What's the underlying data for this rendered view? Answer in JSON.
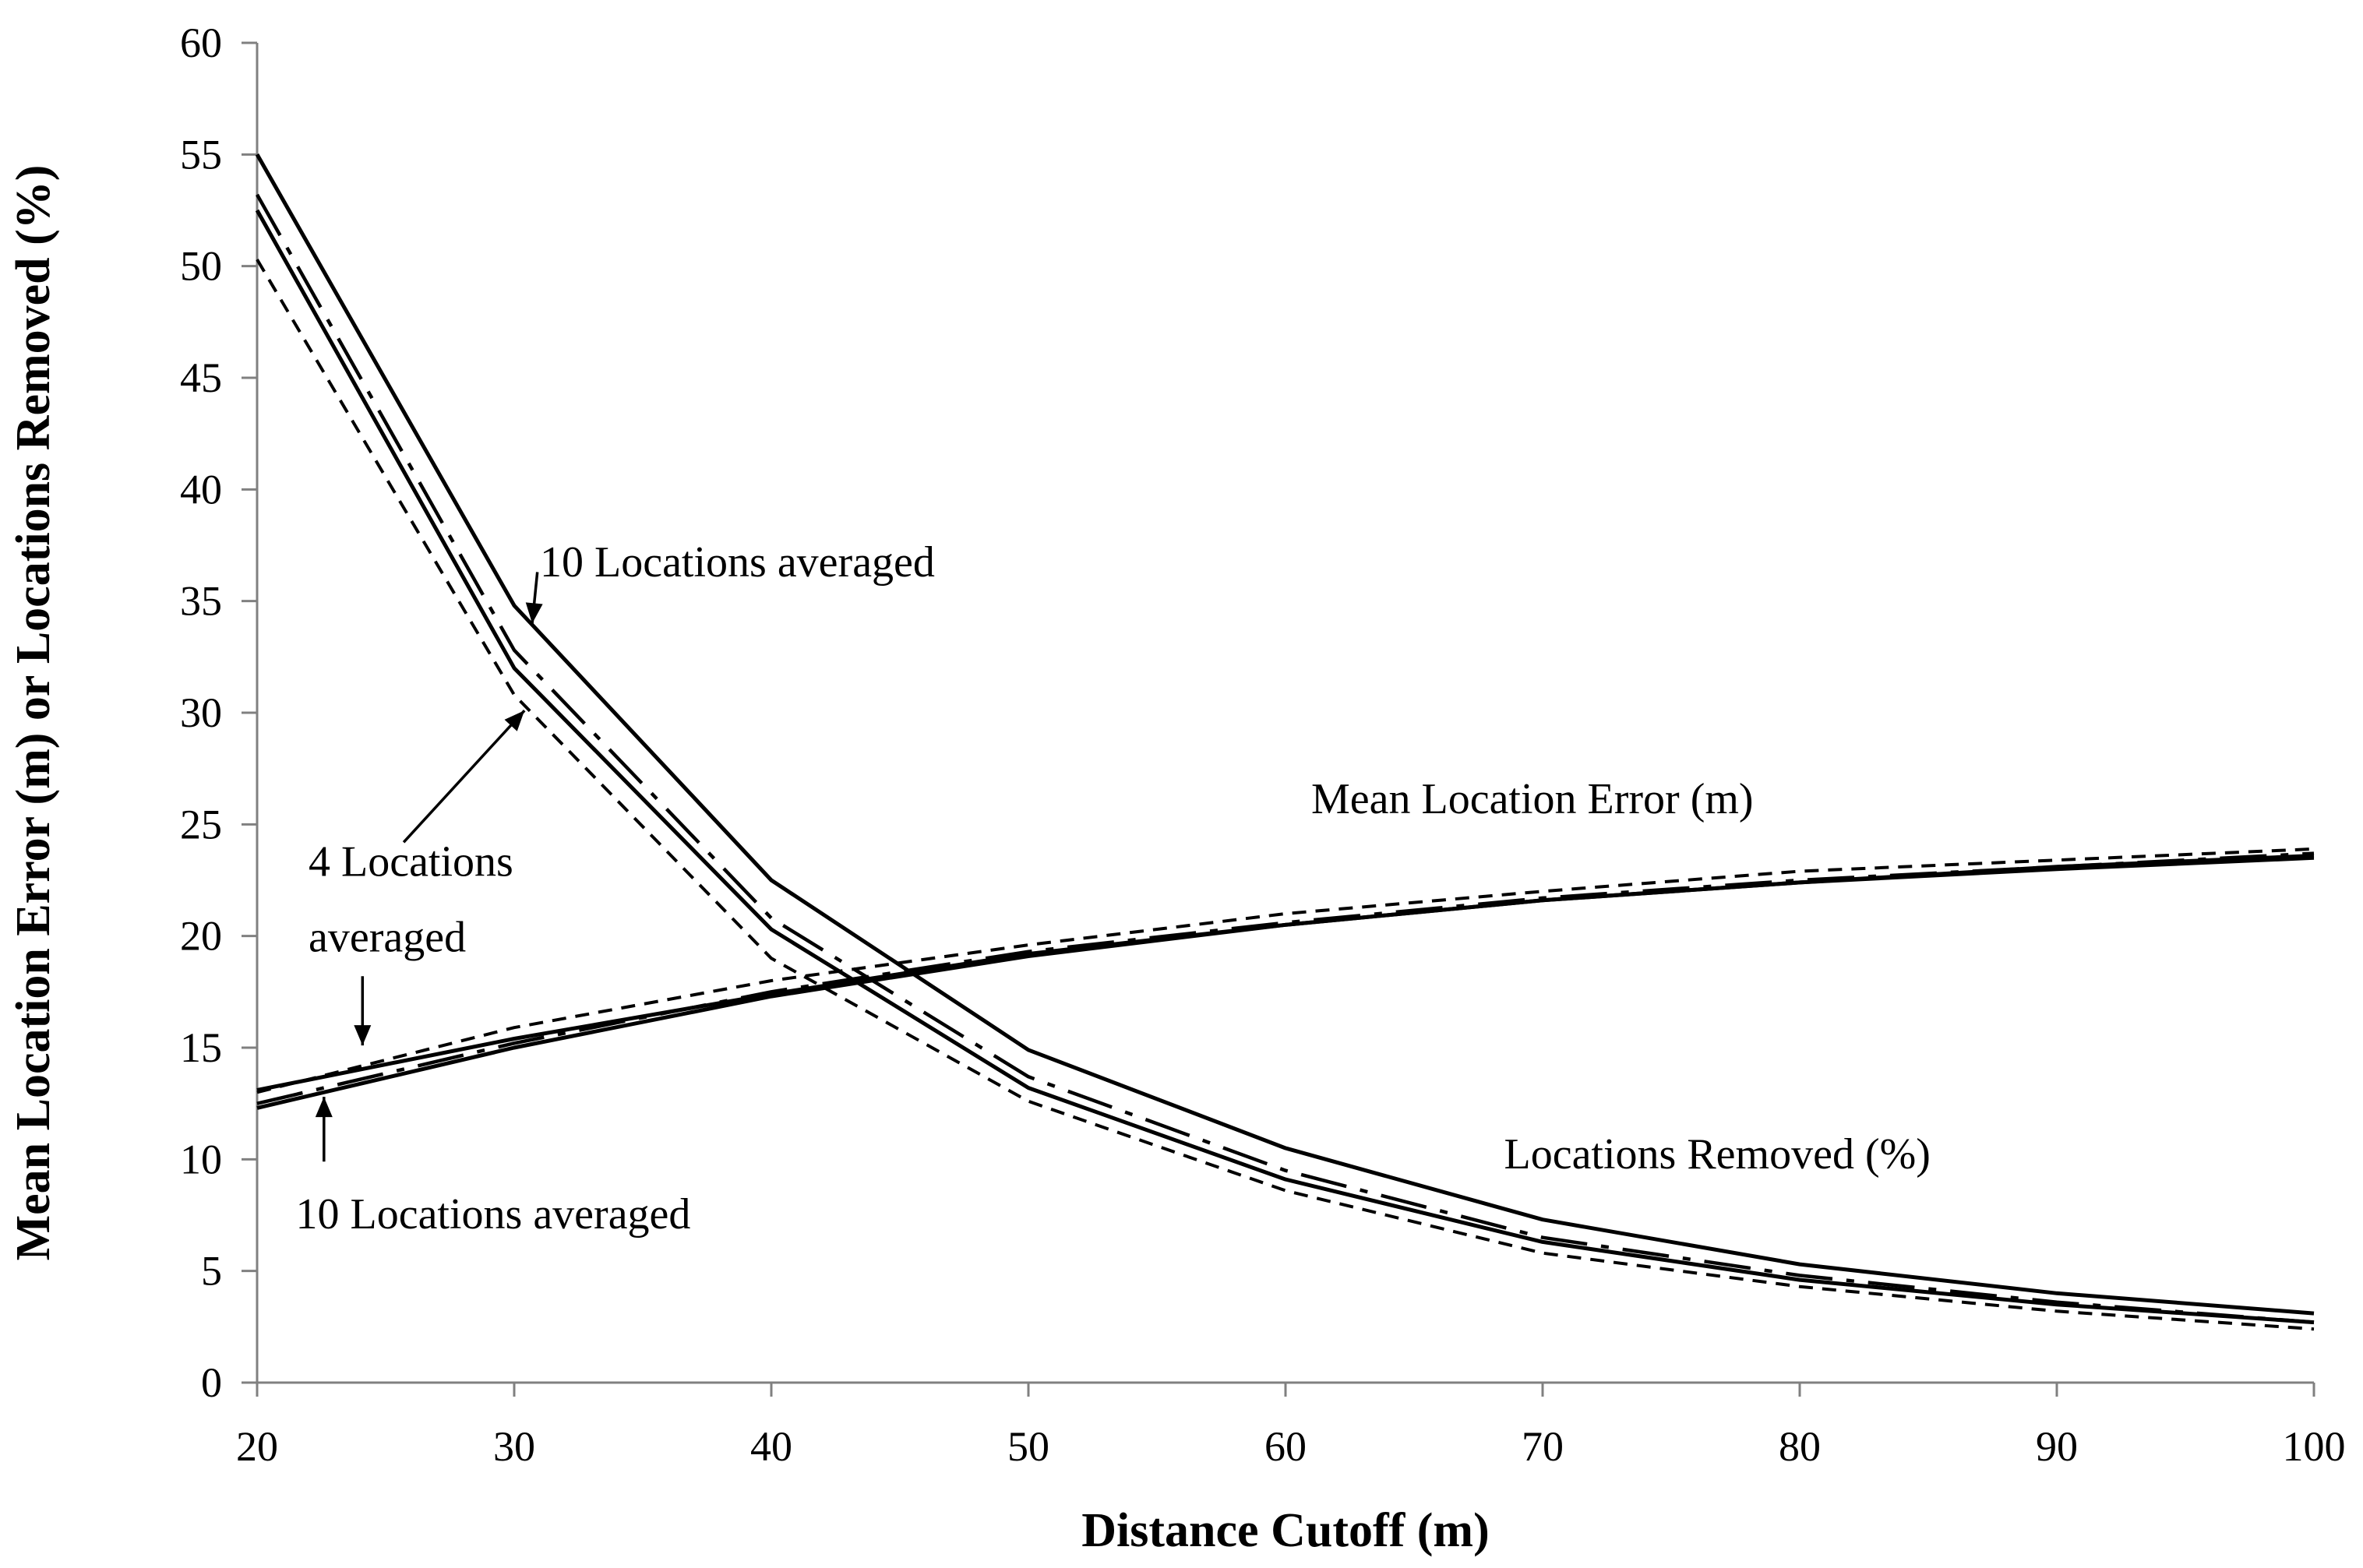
{
  "chart_data": {
    "type": "line",
    "title": "",
    "xlabel": "Distance Cutoff (m)",
    "ylabel": "Mean Location Error (m) or Locations Removed (%)",
    "x": [
      20,
      30,
      40,
      50,
      60,
      70,
      80,
      90,
      100
    ],
    "xlim": [
      20,
      100
    ],
    "ylim": [
      0,
      60
    ],
    "xticks": [
      "20",
      "30",
      "40",
      "50",
      "60",
      "70",
      "80",
      "90",
      "100"
    ],
    "yticks": [
      "0",
      "5",
      "10",
      "15",
      "20",
      "25",
      "30",
      "35",
      "40",
      "45",
      "50",
      "55",
      "60"
    ],
    "grid": false,
    "series": [
      {
        "name": "Locations Removed (%), 10 Locations averaged",
        "style": "solid",
        "values": [
          55.0,
          34.8,
          22.5,
          14.9,
          10.5,
          7.3,
          5.3,
          4.0,
          3.1
        ]
      },
      {
        "name": "Locations Removed (%), dash-dot",
        "style": "dashdot",
        "values": [
          53.2,
          32.8,
          20.8,
          13.7,
          9.5,
          6.5,
          4.8,
          3.6,
          2.7
        ]
      },
      {
        "name": "Locations Removed (%), solid",
        "style": "solid",
        "values": [
          52.5,
          32.0,
          20.3,
          13.2,
          9.1,
          6.3,
          4.6,
          3.5,
          2.7
        ]
      },
      {
        "name": "Locations Removed (%), 4 Locations averaged",
        "style": "dashed",
        "values": [
          50.3,
          30.8,
          19.0,
          12.6,
          8.6,
          5.8,
          4.3,
          3.2,
          2.4
        ]
      },
      {
        "name": "Mean Location Error (m), 4 Locations averaged",
        "style": "dashed",
        "values": [
          13.0,
          15.9,
          18.0,
          19.6,
          21.0,
          22.0,
          22.9,
          23.4,
          23.9
        ]
      },
      {
        "name": "Mean Location Error (m), solid upper",
        "style": "solid",
        "values": [
          13.1,
          15.4,
          17.4,
          19.2,
          20.5,
          21.6,
          22.4,
          23.0,
          23.5
        ]
      },
      {
        "name": "Mean Location Error (m), 10 Locations averaged",
        "style": "solid",
        "values": [
          12.3,
          15.0,
          17.3,
          19.1,
          20.5,
          21.6,
          22.4,
          23.1,
          23.6
        ]
      },
      {
        "name": "Mean Location Error (m), dash-dot",
        "style": "dashdot",
        "values": [
          12.5,
          15.2,
          17.5,
          19.3,
          20.6,
          21.7,
          22.5,
          23.1,
          23.7
        ]
      }
    ],
    "annotations": [
      {
        "text": "10 Locations averaged",
        "x": 31,
        "y": 36.1
      },
      {
        "text": "Mean Location Error (m)",
        "x": 61,
        "y": 25.5
      },
      {
        "text": "4 Locations",
        "x": 22,
        "y": 22.7
      },
      {
        "text": "averaged",
        "x": 22,
        "y": 19.3
      },
      {
        "text": "Locations Removed (%)",
        "x": 68.5,
        "y": 9.6
      },
      {
        "text": "10 Locations averaged",
        "x": 21.5,
        "y": 6.9
      }
    ]
  }
}
